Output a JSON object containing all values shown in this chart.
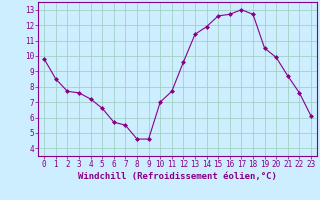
{
  "x": [
    0,
    1,
    2,
    3,
    4,
    5,
    6,
    7,
    8,
    9,
    10,
    11,
    12,
    13,
    14,
    15,
    16,
    17,
    18,
    19,
    20,
    21,
    22,
    23
  ],
  "y": [
    9.8,
    8.5,
    7.7,
    7.6,
    7.2,
    6.6,
    5.7,
    5.5,
    4.6,
    4.6,
    7.0,
    7.7,
    9.6,
    11.4,
    11.9,
    12.6,
    12.7,
    13.0,
    12.7,
    10.5,
    9.9,
    8.7,
    7.6,
    6.1
  ],
  "line_color": "#880088",
  "marker": "D",
  "marker_size": 2,
  "bg_color": "#cceeff",
  "grid_color": "#99ccbb",
  "xlabel": "Windchill (Refroidissement éolien,°C)",
  "xlim": [
    -0.5,
    23.5
  ],
  "ylim": [
    3.5,
    13.5
  ],
  "yticks": [
    4,
    5,
    6,
    7,
    8,
    9,
    10,
    11,
    12,
    13
  ],
  "xticks": [
    0,
    1,
    2,
    3,
    4,
    5,
    6,
    7,
    8,
    9,
    10,
    11,
    12,
    13,
    14,
    15,
    16,
    17,
    18,
    19,
    20,
    21,
    22,
    23
  ],
  "tick_color": "#880088",
  "label_color": "#880088",
  "spine_color": "#880088",
  "tick_fontsize": 5.5,
  "xlabel_fontsize": 6.5
}
